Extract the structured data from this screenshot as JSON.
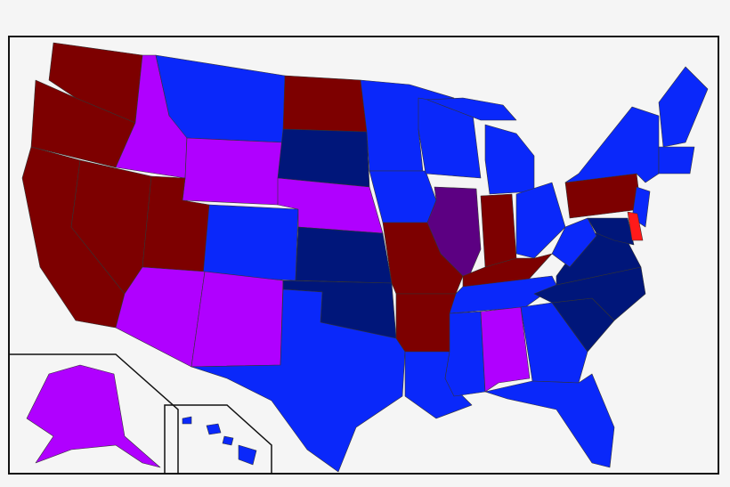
{
  "map": {
    "colors": [
      "#7d0000",
      "#0a28fa",
      "#00167a",
      "#b000ff",
      "#5c0082",
      "#ff1a1a"
    ]
  }
}
